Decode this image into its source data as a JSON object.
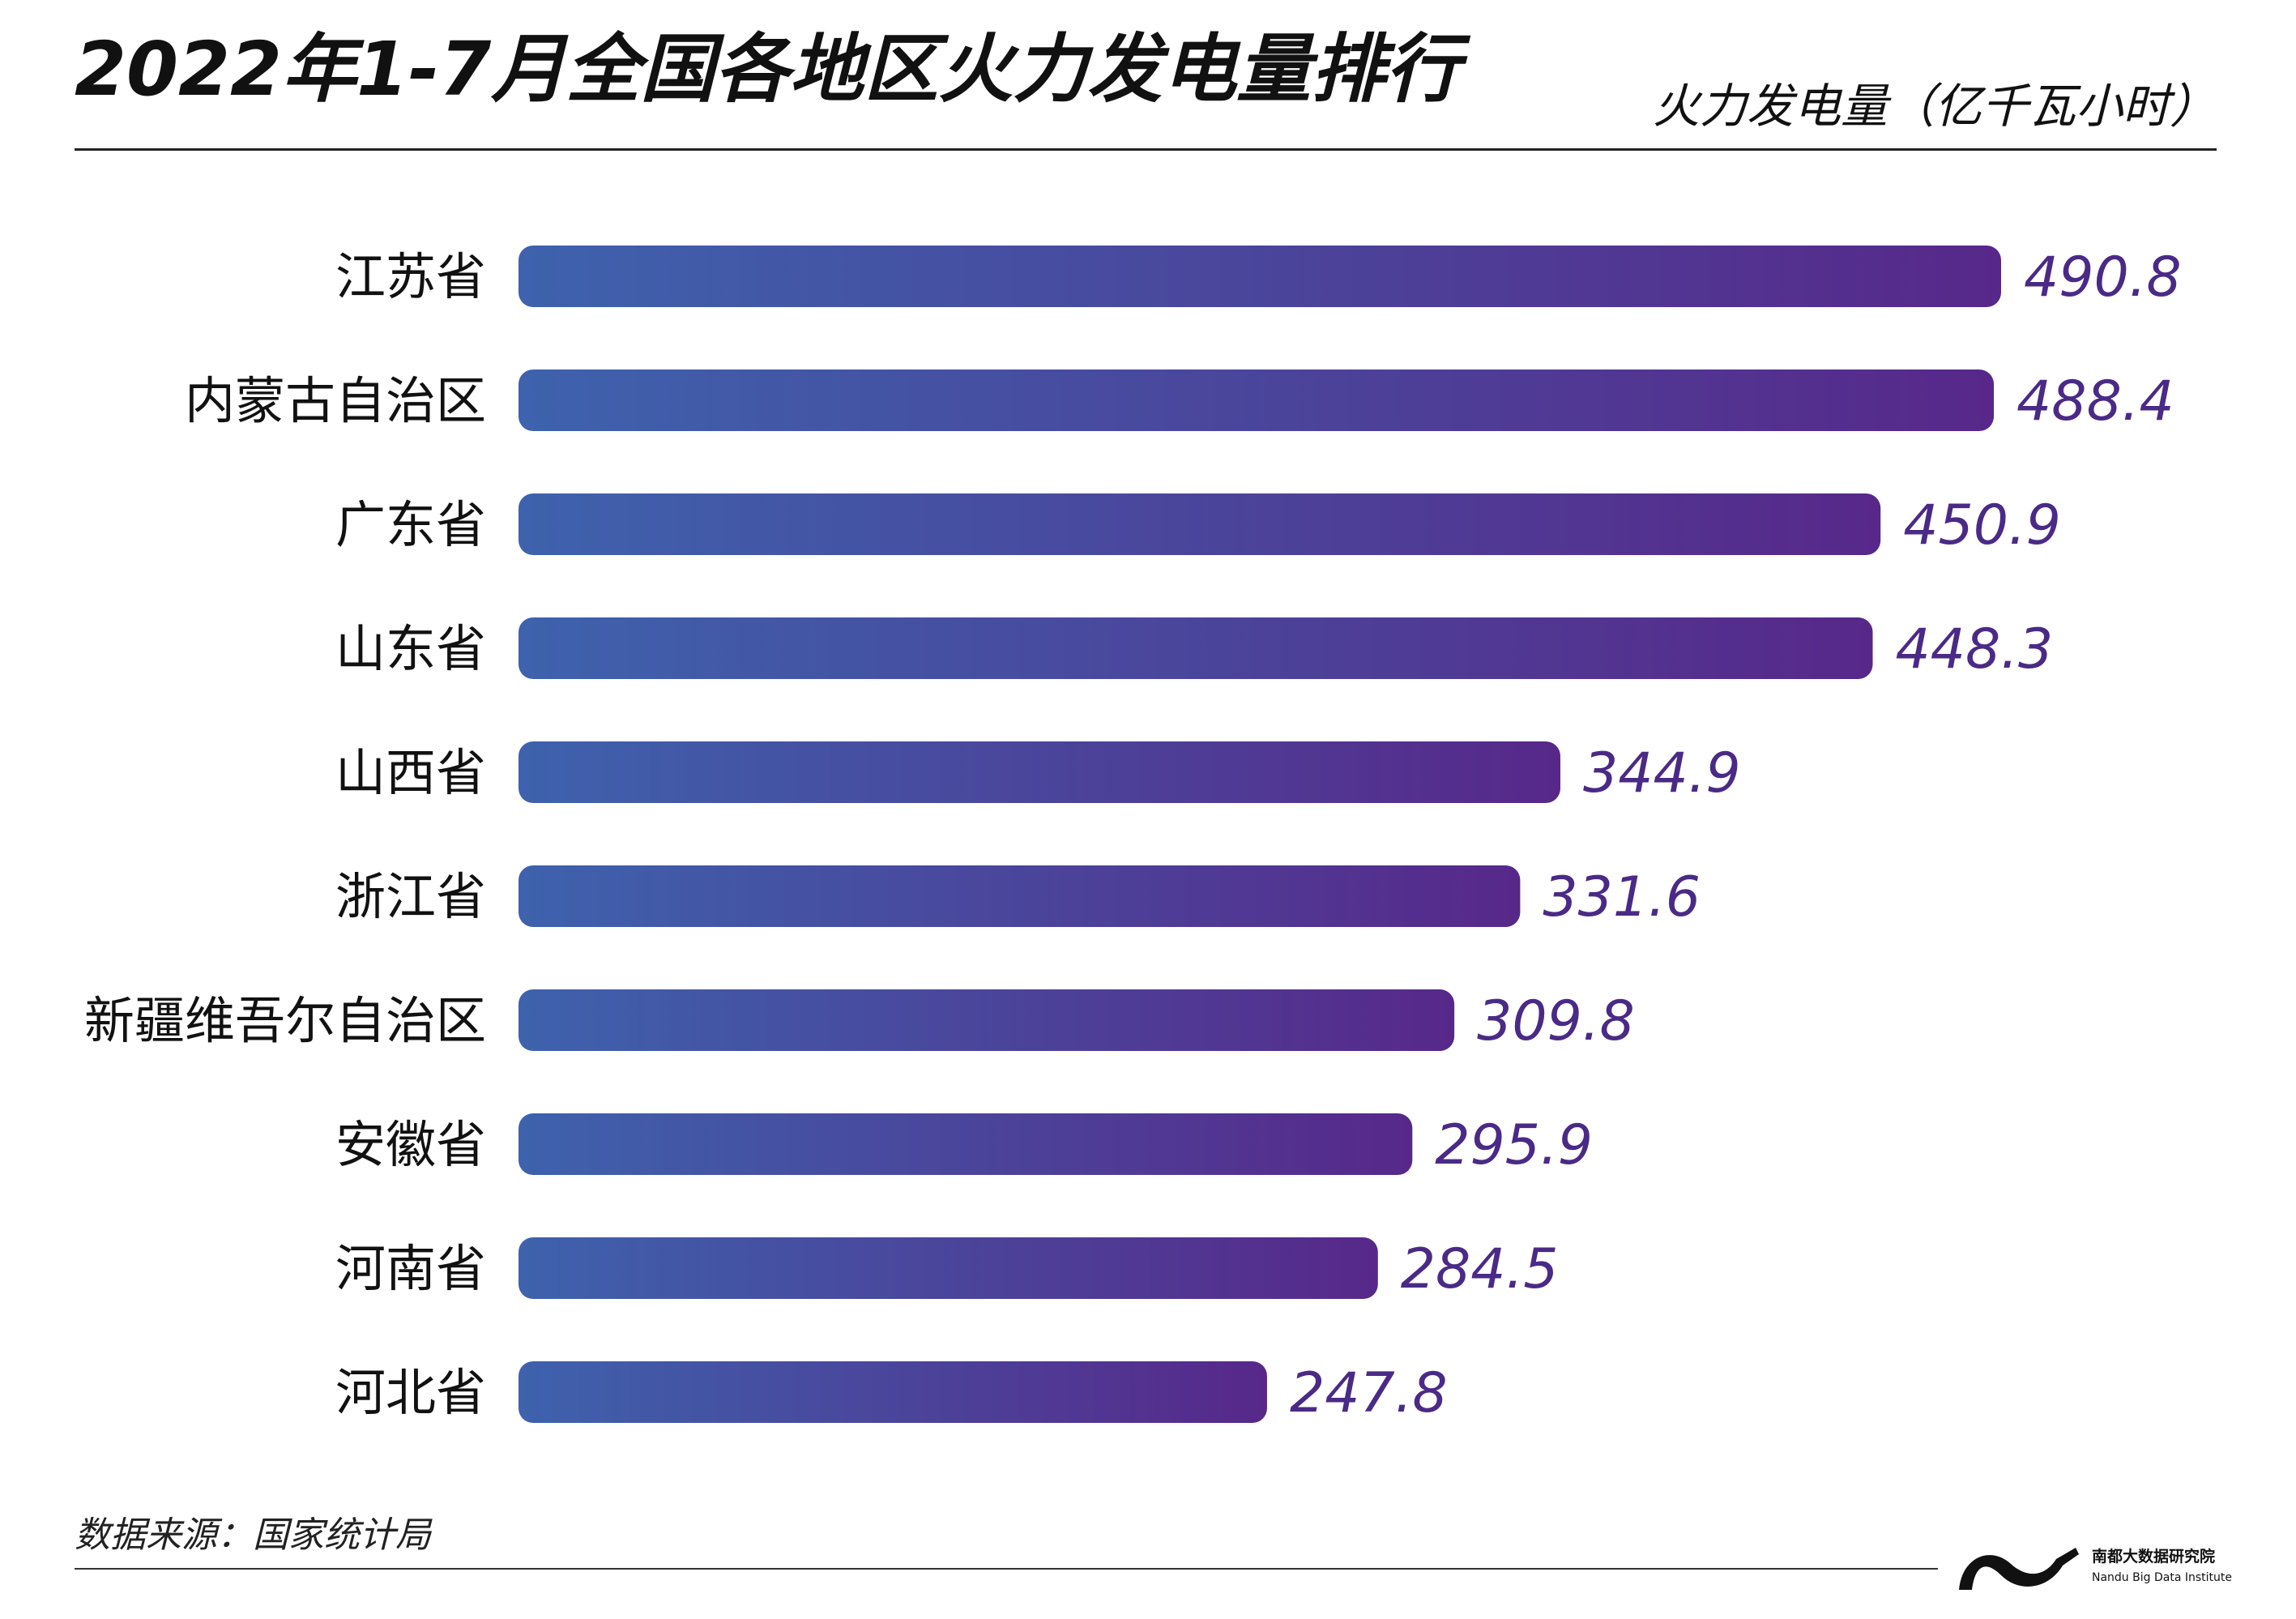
{
  "header": {
    "title": "2022年1-7月全国各地区火力发电量排行",
    "unit_label": "火力发电量（亿千瓦小时）"
  },
  "chart_data": {
    "type": "bar",
    "orientation": "horizontal",
    "title": "2022年1-7月全国各地区火力发电量排行",
    "xlabel": "火力发电量（亿千瓦小时）",
    "ylabel": "",
    "categories": [
      "江苏省",
      "内蒙古自治区",
      "广东省",
      "山东省",
      "山西省",
      "浙江省",
      "新疆维吾尔自治区",
      "安徽省",
      "河南省",
      "河北省"
    ],
    "values": [
      490.8,
      488.4,
      450.9,
      448.3,
      344.9,
      331.6,
      309.8,
      295.9,
      284.5,
      247.8
    ],
    "value_labels": [
      "490.8",
      "488.4",
      "450.9",
      "448.3",
      "344.9",
      "331.6",
      "309.8",
      "295.9",
      "284.5",
      "247.8"
    ],
    "xlim": [
      0,
      500
    ],
    "grid": false,
    "legend": "none",
    "colors": {
      "bar_start": "#3e62ad",
      "bar_end": "#57288a",
      "value_text": "#4a2a86"
    }
  },
  "footer": {
    "source": "数据来源：国家统计局",
    "logo_cn": "南都大数据研究院",
    "logo_en": "Nandu Big Data Institute"
  }
}
